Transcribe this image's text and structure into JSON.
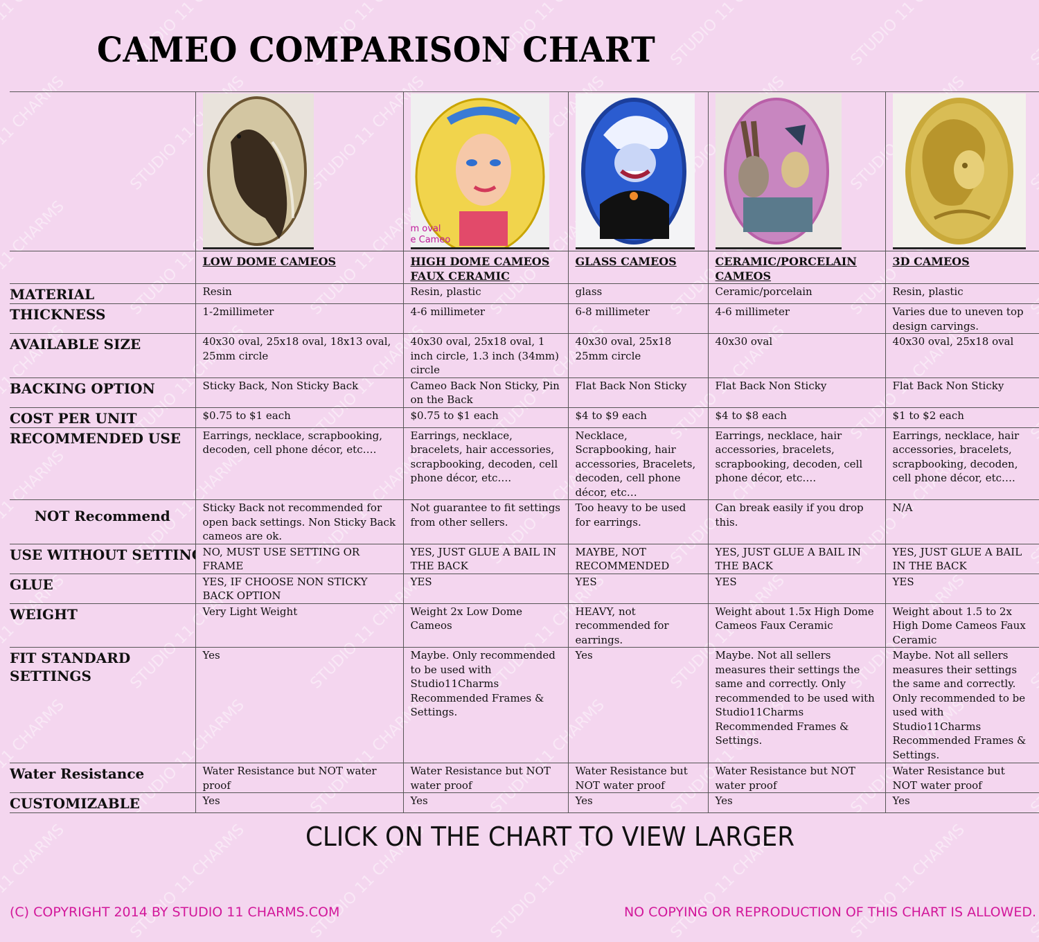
{
  "title": "CAMEO COMPARISON CHART",
  "columns": [
    {
      "name": "LOW DOME CAMEOS",
      "image": "raven-cameo-image"
    },
    {
      "name": "HIGH DOME CAMEOS FAUX CERAMIC",
      "image": "blonde-girl-cameo-image",
      "image_caption": "m oval\ne Cameo"
    },
    {
      "name": "GLASS CAMEOS",
      "image": "sea-witch-cameo-image"
    },
    {
      "name": "CERAMIC/PORCELAIN CAMEOS",
      "image": "rabbit-tea-party-cameo-image"
    },
    {
      "name": "3D CAMEOS",
      "image": "gold-skeleton-lady-cameo-image"
    }
  ],
  "rows": [
    {
      "label": "MATERIAL",
      "cells": [
        "Resin",
        "Resin, plastic",
        "glass",
        "Ceramic/porcelain",
        "Resin, plastic"
      ]
    },
    {
      "label": "THICKNESS",
      "cells": [
        "1-2millimeter",
        "4-6 millimeter",
        "6-8 millimeter",
        "4-6 millimeter",
        "Varies due to uneven top design carvings."
      ]
    },
    {
      "label": "AVAILABLE SIZE",
      "cells": [
        "40x30 oval, 25x18 oval, 18x13 oval, 25mm circle",
        "40x30 oval, 25x18 oval, 1 inch circle, 1.3 inch (34mm) circle",
        "40x30 oval, 25x18 25mm circle",
        "40x30 oval",
        "40x30 oval, 25x18 oval"
      ]
    },
    {
      "label": "BACKING OPTION",
      "cells": [
        "Sticky Back, Non Sticky Back",
        "Cameo Back Non Sticky, Pin on the Back",
        "Flat Back Non Sticky",
        "Flat Back Non Sticky",
        "Flat Back Non Sticky"
      ]
    },
    {
      "label": "COST PER UNIT",
      "cells": [
        "$0.75 to $1 each",
        "$0.75 to $1 each",
        "$4 to $9 each",
        "$4 to $8 each",
        "$1 to $2 each"
      ]
    },
    {
      "label": "RECOMMENDED USE",
      "cells": [
        "Earrings, necklace, scrapbooking, decoden, cell phone décor, etc….",
        "Earrings, necklace, bracelets, hair accessories, scrapbooking, decoden, cell phone décor, etc….",
        "Necklace, Scrapbooking, hair accessories, Bracelets, decoden, cell phone décor, etc…",
        "Earrings, necklace, hair accessories, bracelets, scrapbooking, decoden, cell phone décor, etc….",
        "Earrings, necklace, hair accessories, bracelets, scrapbooking, decoden, cell phone décor, etc…."
      ]
    },
    {
      "label": "NOT Recommend",
      "cells": [
        "Sticky Back not recommended for open back settings.  Non Sticky Back cameos are ok.",
        "Not guarantee to fit settings from other sellers.",
        "Too heavy to be used for earrings.",
        "Can break easily if you drop this.",
        "N/A"
      ]
    },
    {
      "label": "USE WITHOUT SETTING",
      "cells": [
        "NO, MUST USE SETTING OR FRAME",
        "YES, JUST GLUE A BAIL IN THE BACK",
        "MAYBE, NOT RECOMMENDED",
        "YES, JUST GLUE A BAIL IN THE BACK",
        "YES, JUST GLUE A BAIL IN THE BACK"
      ]
    },
    {
      "label": "GLUE",
      "cells": [
        "YES, IF CHOOSE NON STICKY BACK OPTION",
        "YES",
        "YES",
        "YES",
        "YES"
      ]
    },
    {
      "label": "WEIGHT",
      "cells": [
        "Very Light Weight",
        "Weight 2x Low Dome Cameos",
        "HEAVY, not recommended for earrings.",
        "Weight about 1.5x High Dome Cameos Faux Ceramic",
        "Weight about 1.5 to 2x High Dome Cameos Faux Ceramic"
      ]
    },
    {
      "label": "FIT STANDARD SETTINGS",
      "cells": [
        "Yes",
        "Maybe.  Only recommended to be used with Studio11Charms Recommended Frames & Settings.",
        "Yes",
        "Maybe.  Not all sellers measures their settings the same and correctly.  Only recommended to be used with Studio11Charms Recommended Frames & Settings.",
        "Maybe.  Not all sellers measures their settings the same and correctly.  Only recommended to be used with Studio11Charms Recommended Frames & Settings."
      ]
    },
    {
      "label": "Water Resistance",
      "cells": [
        "Water Resistance but NOT water proof",
        "Water Resistance but NOT water proof",
        "Water Resistance but NOT water proof",
        "Water Resistance but NOT water proof",
        "Water Resistance but NOT water proof"
      ]
    },
    {
      "label": "CUSTOMIZABLE",
      "cells": [
        "Yes",
        "Yes",
        "Yes",
        "Yes",
        "Yes"
      ]
    }
  ],
  "cta": "CLICK ON THE CHART TO VIEW LARGER",
  "footer_left": "(C) COPYRIGHT 2014 BY STUDIO 11 CHARMS.COM",
  "footer_right": "NO COPYING OR REPRODUCTION OF THIS CHART IS ALLOWED.",
  "watermark_text": "STUDIO 11 CHARMS",
  "colors": {
    "background": "#f4d6ef",
    "footer_text": "#d2179a",
    "gold": "#c9a93a"
  }
}
